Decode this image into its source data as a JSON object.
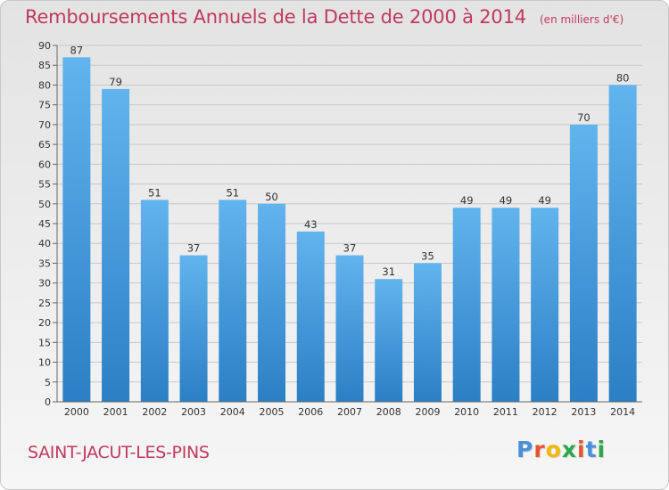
{
  "header": {
    "title": "Remboursements Annuels de la Dette de 2000 à 2014",
    "unit": "(en milliers d'€)"
  },
  "footer": {
    "place": "SAINT-JACUT-LES-PINS",
    "logo": "Proxiti",
    "logo_colors": [
      "#4a90d9",
      "#e8542f",
      "#f5b700",
      "#2aa84a",
      "#e8542f",
      "#4a90d9",
      "#2aa84a"
    ]
  },
  "colors": {
    "bar_top": "#62b4ee",
    "bar_bottom": "#2b7fc4",
    "title": "#c0395d",
    "grid": "#c8c8c8"
  },
  "chart_data": {
    "type": "bar",
    "title": "Remboursements Annuels de la Dette de 2000 à 2014",
    "xlabel": "",
    "ylabel": "",
    "categories": [
      "2000",
      "2001",
      "2002",
      "2003",
      "2004",
      "2005",
      "2006",
      "2007",
      "2008",
      "2009",
      "2010",
      "2011",
      "2012",
      "2013",
      "2014"
    ],
    "values": [
      87,
      79,
      51,
      37,
      51,
      50,
      43,
      37,
      31,
      35,
      49,
      49,
      49,
      70,
      80
    ],
    "ylim": [
      0,
      90
    ],
    "yticks": [
      0,
      5,
      10,
      15,
      20,
      25,
      30,
      35,
      40,
      45,
      50,
      55,
      60,
      65,
      70,
      75,
      80,
      85,
      90
    ],
    "grid": true,
    "value_labels": true
  }
}
